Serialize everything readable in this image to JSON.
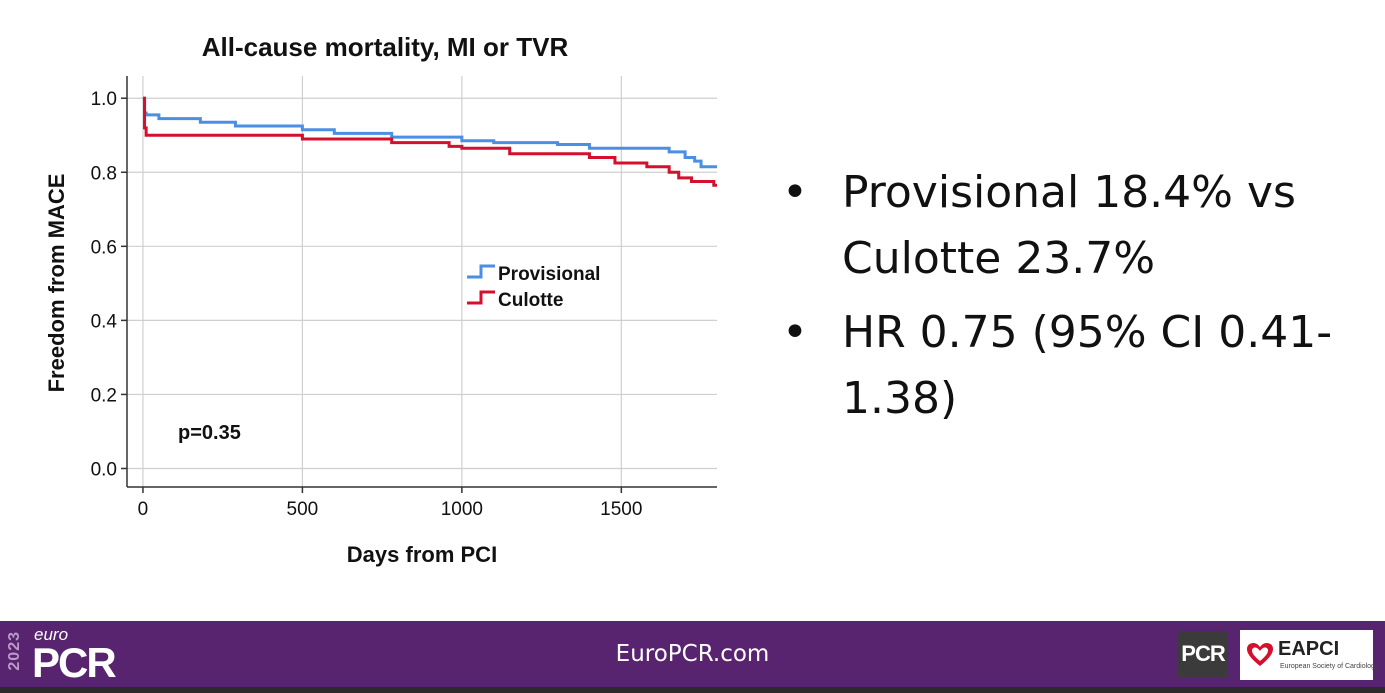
{
  "chart_data": {
    "type": "line",
    "step": true,
    "title": "All-cause mortality, MI or TVR",
    "xlabel": "Days from PCI",
    "ylabel": "Freedom from MACE",
    "xlim": [
      -50,
      1800
    ],
    "ylim": [
      -0.05,
      1.06
    ],
    "xticks": [
      0,
      500,
      1000,
      1500
    ],
    "xtick_labels": [
      "0",
      "500",
      "1000",
      "1500"
    ],
    "yticks": [
      0.0,
      0.2,
      0.4,
      0.6,
      0.8,
      1.0
    ],
    "ytick_labels": [
      "0.0",
      "0.2",
      "0.4",
      "0.6",
      "0.8",
      "1.0"
    ],
    "grid": true,
    "legend_position": "center-right",
    "annotation": "p=0.35",
    "series": [
      {
        "name": "Provisional",
        "color": "#4a8fe3",
        "x": [
          0,
          5,
          10,
          50,
          180,
          290,
          500,
          600,
          780,
          1000,
          1100,
          1300,
          1400,
          1650,
          1700,
          1730,
          1750,
          1800
        ],
        "y": [
          1.0,
          0.96,
          0.955,
          0.945,
          0.935,
          0.925,
          0.915,
          0.905,
          0.895,
          0.885,
          0.88,
          0.875,
          0.865,
          0.855,
          0.84,
          0.83,
          0.815,
          0.815
        ]
      },
      {
        "name": "Culotte",
        "color": "#d4102e",
        "x": [
          0,
          5,
          10,
          500,
          780,
          960,
          1000,
          1150,
          1400,
          1480,
          1580,
          1650,
          1680,
          1720,
          1790,
          1800
        ],
        "y": [
          1.0,
          0.92,
          0.9,
          0.89,
          0.88,
          0.87,
          0.865,
          0.85,
          0.84,
          0.825,
          0.815,
          0.8,
          0.785,
          0.775,
          0.765,
          0.765
        ]
      }
    ]
  },
  "bullets": [
    "Provisional 18.4% vs Culotte 23.7%",
    "HR 0.75 (95% CI 0.41-1.38)"
  ],
  "footer": {
    "site": "EuroPCR.com",
    "logo_year": "2023",
    "logo_euro": "euro",
    "logo_pcr": "PCR",
    "logo_pcr_small": "PCR",
    "eapci_name": "EAPCI",
    "eapci_sub": "European Society of Cardiology"
  },
  "colors": {
    "footer_bg": "#59246f",
    "provisional": "#4a8fe3",
    "culotte": "#d4102e"
  }
}
